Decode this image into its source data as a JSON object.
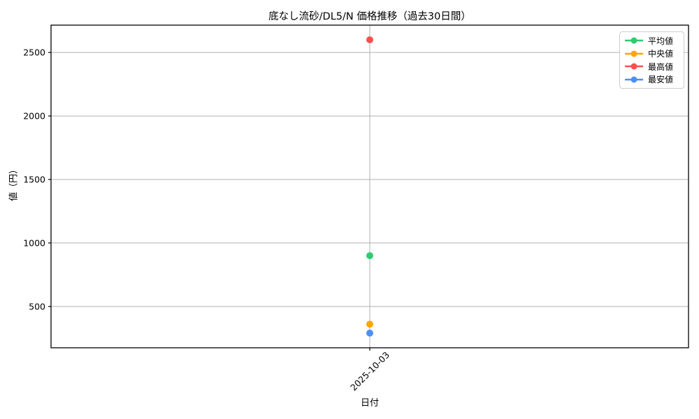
{
  "chart_data": {
    "type": "line",
    "title": "底なし流砂/DL5/N 価格推移（過去30日間）",
    "xlabel": "日付",
    "ylabel": "値（円）",
    "x": [
      "2025-10-03"
    ],
    "series": [
      {
        "name": "平均値",
        "color": "#2ecc71",
        "values": [
          900
        ]
      },
      {
        "name": "中央値",
        "color": "#ffa502",
        "values": [
          360
        ]
      },
      {
        "name": "最高値",
        "color": "#f4534f",
        "values": [
          2600
        ]
      },
      {
        "name": "最安値",
        "color": "#4d90f5",
        "values": [
          290
        ]
      }
    ],
    "ylim": [
      174.5,
      2715.5
    ],
    "yticks": [
      500,
      1000,
      1500,
      2000,
      2500
    ],
    "grid": true,
    "grid_color": "#b0b0b0",
    "spine_color": "#000000",
    "legend_position": "upper right"
  }
}
